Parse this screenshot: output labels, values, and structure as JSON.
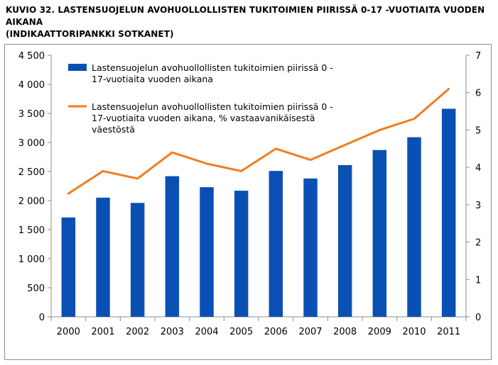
{
  "title": {
    "line1": "KUVIO 32. LASTENSUOJELUN AVOHUOLLOLLISTEN TUKITOIMIEN PIIRISSÄ 0-17 -VUOTIAITA VUODEN AIKANA",
    "line2": "(INDIKAATTORIPANKKI SOTKANET)"
  },
  "chart_data": {
    "type": "bar",
    "categories": [
      "2000",
      "2001",
      "2002",
      "2003",
      "2004",
      "2005",
      "2006",
      "2007",
      "2008",
      "2009",
      "2010",
      "2011"
    ],
    "series": [
      {
        "name": "Lastensuojelun avohuollollisten tukitoimien piirissä 0 - 17-vuotiaita vuoden aikana",
        "name_lines": [
          "Lastensuojelun avohuollollisten tukitoimien piirissä 0 -",
          "17-vuotiaita vuoden aikana"
        ],
        "kind": "bar",
        "axis": "left",
        "color": "#0a50b4",
        "values": [
          1710,
          2050,
          1960,
          2420,
          2230,
          2170,
          2510,
          2380,
          2610,
          2870,
          3090,
          3580
        ]
      },
      {
        "name": "Lastensuojelun avohuollollisten tukitoimien piirissä 0 - 17-vuotiaita vuoden aikana, % vastaavanikäisestä väestöstä",
        "name_lines": [
          "Lastensuojelun avohuollollisten tukitoimien piirissä 0 -",
          "17-vuotiaita vuoden aikana, % vastaavanikäisestä",
          "väestöstä"
        ],
        "kind": "line",
        "axis": "right",
        "color": "#f07d1e",
        "values": [
          3.3,
          3.9,
          3.7,
          4.4,
          4.1,
          3.9,
          4.5,
          4.2,
          4.6,
          5.0,
          5.3,
          6.1
        ]
      }
    ],
    "left_axis": {
      "ylim": [
        0,
        4500
      ],
      "ticks": [
        0,
        500,
        1000,
        1500,
        2000,
        2500,
        3000,
        3500,
        4000,
        4500
      ],
      "tick_labels": [
        "0",
        "500",
        "1 000",
        "1 500",
        "2 000",
        "2 500",
        "3 000",
        "3 500",
        "4 000",
        "4 500"
      ]
    },
    "right_axis": {
      "ylim": [
        0,
        7
      ],
      "ticks": [
        0,
        1,
        2,
        3,
        4,
        5,
        6,
        7
      ],
      "tick_labels": [
        "0",
        "1",
        "2",
        "3",
        "4",
        "5",
        "6",
        "7"
      ]
    },
    "grid": false,
    "legend_position": "top-left"
  }
}
